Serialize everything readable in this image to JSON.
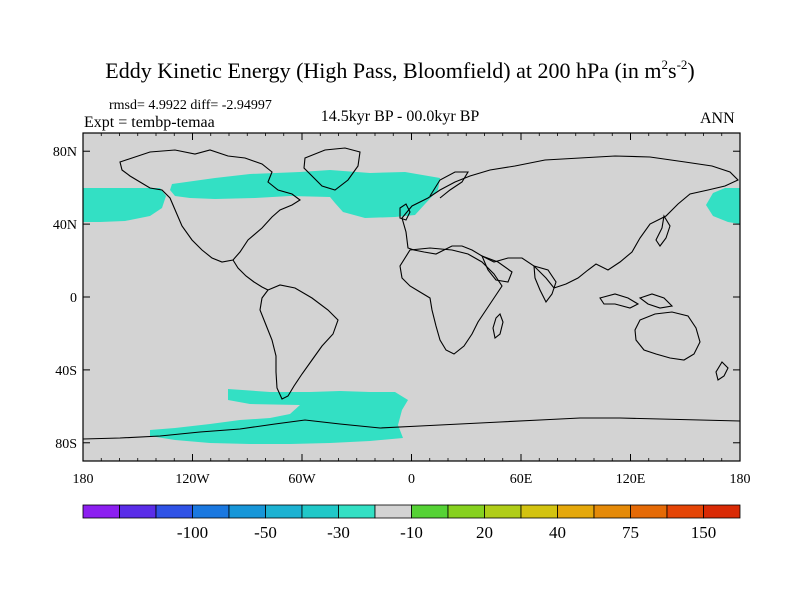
{
  "title": {
    "main": "Eddy Kinetic Energy (High Pass, Bloomfield) at 200 hPa (in m",
    "sup1": "2",
    "mid": "s",
    "sup2": "-2",
    "end": ")"
  },
  "stats_line": "rmsd= 4.9922 diff= -2.94997",
  "experiment": "Expt = tembp-temaa",
  "period": "14.5kyr BP - 00.0kyr BP",
  "season": "ANN",
  "map": {
    "lat_ticks": [
      "80N",
      "40N",
      "0",
      "40S",
      "80S"
    ],
    "lon_ticks": [
      "180",
      "120W",
      "60W",
      "0",
      "60E",
      "120E",
      "180"
    ],
    "background_color": "#d3d3d3",
    "anomaly_color": "#33e0c4"
  },
  "colorbar": {
    "colors": [
      "#8c1ff0",
      "#5a2de8",
      "#2f52e6",
      "#1a78e0",
      "#1796d8",
      "#1cb2d2",
      "#20c8c8",
      "#33e0c4",
      "#d3d3d3",
      "#55d235",
      "#86d11f",
      "#b0cd18",
      "#d3c310",
      "#e5a80b",
      "#e58a08",
      "#e56a06",
      "#e54506",
      "#d92a05"
    ],
    "labels": [
      "-100",
      "-50",
      "-30",
      "-10",
      "20",
      "40",
      "75",
      "150"
    ]
  }
}
